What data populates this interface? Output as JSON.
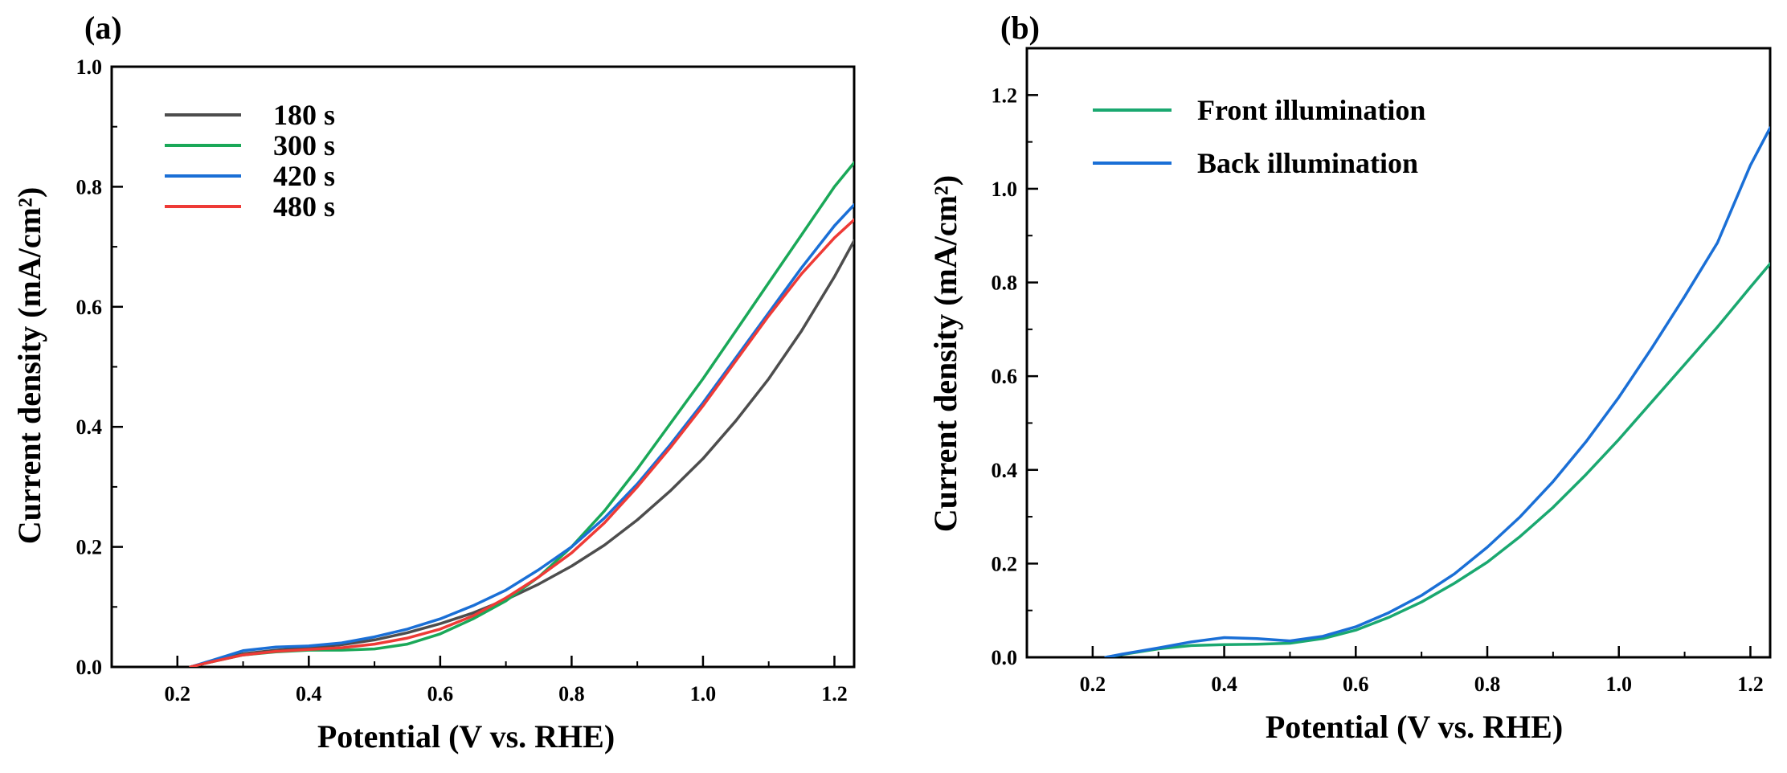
{
  "chart_data": [
    {
      "panel": "(a)",
      "type": "line",
      "xlabel": "Potential (V vs. RHE)",
      "ylabel": "Current density (mA/cm²)",
      "xlim": [
        0.1,
        1.23
      ],
      "ylim": [
        0.0,
        1.0
      ],
      "xticks": [
        0.2,
        0.4,
        0.6,
        0.8,
        1.0,
        1.2
      ],
      "yticks": [
        0.0,
        0.2,
        0.4,
        0.6,
        0.8,
        1.0
      ],
      "xtick_labels": [
        "0.2",
        "0.4",
        "0.6",
        "0.8",
        "1.0",
        "1.2"
      ],
      "ytick_labels": [
        "0.0",
        "0.2",
        "0.4",
        "0.6",
        "0.8",
        "1.0"
      ],
      "legend_position": "top-left",
      "series": [
        {
          "name": "180 s",
          "color": "#4d4d4d",
          "x": [
            0.22,
            0.25,
            0.3,
            0.35,
            0.4,
            0.45,
            0.5,
            0.55,
            0.6,
            0.65,
            0.7,
            0.75,
            0.8,
            0.85,
            0.9,
            0.95,
            1.0,
            1.05,
            1.1,
            1.15,
            1.2,
            1.23
          ],
          "y": [
            0.0,
            0.008,
            0.022,
            0.028,
            0.032,
            0.037,
            0.045,
            0.057,
            0.072,
            0.09,
            0.112,
            0.138,
            0.168,
            0.203,
            0.245,
            0.293,
            0.347,
            0.41,
            0.48,
            0.56,
            0.65,
            0.71
          ]
        },
        {
          "name": "300 s",
          "color": "#1aa858",
          "x": [
            0.22,
            0.25,
            0.3,
            0.35,
            0.4,
            0.45,
            0.5,
            0.55,
            0.6,
            0.65,
            0.7,
            0.75,
            0.8,
            0.85,
            0.9,
            0.95,
            1.0,
            1.05,
            1.1,
            1.15,
            1.2,
            1.23
          ],
          "y": [
            0.0,
            0.008,
            0.02,
            0.025,
            0.028,
            0.028,
            0.03,
            0.038,
            0.055,
            0.08,
            0.11,
            0.15,
            0.2,
            0.26,
            0.33,
            0.405,
            0.48,
            0.56,
            0.64,
            0.72,
            0.8,
            0.84
          ]
        },
        {
          "name": "420 s",
          "color": "#1a6fd6",
          "x": [
            0.22,
            0.25,
            0.3,
            0.35,
            0.4,
            0.45,
            0.5,
            0.55,
            0.6,
            0.65,
            0.7,
            0.75,
            0.8,
            0.85,
            0.9,
            0.95,
            1.0,
            1.05,
            1.1,
            1.15,
            1.2,
            1.23
          ],
          "y": [
            0.0,
            0.01,
            0.027,
            0.033,
            0.035,
            0.04,
            0.05,
            0.063,
            0.08,
            0.102,
            0.128,
            0.162,
            0.2,
            0.248,
            0.305,
            0.37,
            0.44,
            0.515,
            0.59,
            0.665,
            0.735,
            0.77
          ]
        },
        {
          "name": "480 s",
          "color": "#ee3a36",
          "x": [
            0.22,
            0.25,
            0.3,
            0.35,
            0.4,
            0.45,
            0.5,
            0.55,
            0.6,
            0.65,
            0.7,
            0.75,
            0.8,
            0.85,
            0.9,
            0.95,
            1.0,
            1.05,
            1.1,
            1.15,
            1.2,
            1.23
          ],
          "y": [
            0.0,
            0.008,
            0.02,
            0.026,
            0.029,
            0.032,
            0.038,
            0.048,
            0.063,
            0.085,
            0.115,
            0.15,
            0.19,
            0.24,
            0.3,
            0.365,
            0.435,
            0.51,
            0.585,
            0.655,
            0.715,
            0.745
          ]
        }
      ]
    },
    {
      "panel": "(b)",
      "type": "line",
      "xlabel": "Potential (V vs. RHE)",
      "ylabel": "Current density (mA/cm²)",
      "xlim": [
        0.1,
        1.23
      ],
      "ylim": [
        0.0,
        1.3
      ],
      "xticks": [
        0.2,
        0.4,
        0.6,
        0.8,
        1.0,
        1.2
      ],
      "yticks": [
        0.0,
        0.2,
        0.4,
        0.6,
        0.8,
        1.0,
        1.2
      ],
      "xtick_labels": [
        "0.2",
        "0.4",
        "0.6",
        "0.8",
        "1.0",
        "1.2"
      ],
      "ytick_labels": [
        "0.0",
        "0.2",
        "0.4",
        "0.6",
        "0.8",
        "1.0",
        "1.2"
      ],
      "legend_position": "top-left",
      "series": [
        {
          "name": "Front illumination",
          "color": "#1aa870",
          "x": [
            0.22,
            0.25,
            0.3,
            0.35,
            0.4,
            0.45,
            0.5,
            0.55,
            0.6,
            0.65,
            0.7,
            0.75,
            0.8,
            0.85,
            0.9,
            0.95,
            1.0,
            1.05,
            1.1,
            1.15,
            1.2,
            1.23
          ],
          "y": [
            0.0,
            0.007,
            0.018,
            0.025,
            0.027,
            0.028,
            0.03,
            0.04,
            0.058,
            0.085,
            0.118,
            0.158,
            0.203,
            0.258,
            0.32,
            0.39,
            0.465,
            0.545,
            0.625,
            0.705,
            0.79,
            0.84
          ]
        },
        {
          "name": "Back illumination",
          "color": "#1a6fd6",
          "x": [
            0.22,
            0.25,
            0.3,
            0.35,
            0.4,
            0.45,
            0.5,
            0.55,
            0.6,
            0.65,
            0.7,
            0.75,
            0.8,
            0.85,
            0.9,
            0.95,
            1.0,
            1.05,
            1.1,
            1.15,
            1.2,
            1.23
          ],
          "y": [
            0.0,
            0.008,
            0.02,
            0.033,
            0.042,
            0.04,
            0.035,
            0.045,
            0.065,
            0.095,
            0.132,
            0.178,
            0.235,
            0.3,
            0.375,
            0.46,
            0.555,
            0.66,
            0.77,
            0.885,
            1.05,
            1.13
          ]
        }
      ]
    }
  ]
}
